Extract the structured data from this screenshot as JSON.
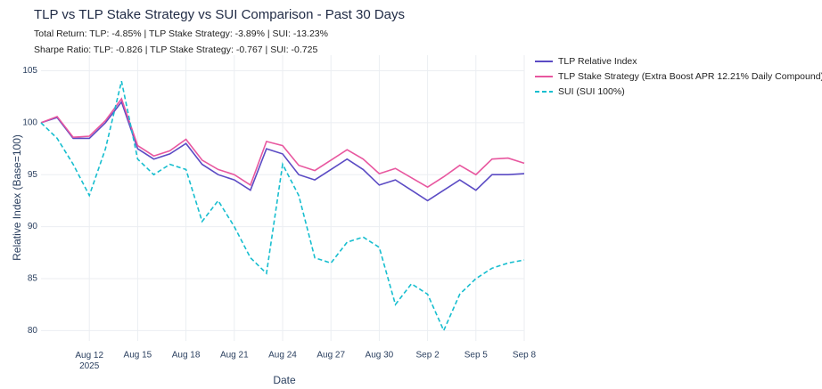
{
  "chart_data": {
    "type": "line",
    "title": "TLP vs TLP Stake Strategy vs SUI Comparison - Past 30 Days",
    "subtitle_lines": [
      "Total Return: TLP: -4.85% | TLP Stake Strategy: -3.89% | SUI: -13.23%",
      "Sharpe Ratio: TLP: -0.826 | TLP Stake Strategy: -0.767 | SUI: -0.725"
    ],
    "x_label": "Date",
    "y_label": "Relative Index (Base=100)",
    "x": [
      "2025-08-09",
      "2025-08-10",
      "2025-08-11",
      "2025-08-12",
      "2025-08-13",
      "2025-08-14",
      "2025-08-15",
      "2025-08-16",
      "2025-08-17",
      "2025-08-18",
      "2025-08-19",
      "2025-08-20",
      "2025-08-21",
      "2025-08-22",
      "2025-08-23",
      "2025-08-24",
      "2025-08-25",
      "2025-08-26",
      "2025-08-27",
      "2025-08-28",
      "2025-08-29",
      "2025-08-30",
      "2025-08-31",
      "2025-09-01",
      "2025-09-02",
      "2025-09-03",
      "2025-09-04",
      "2025-09-05",
      "2025-09-06",
      "2025-09-07",
      "2025-09-08"
    ],
    "series": [
      {
        "name": "TLP Relative Index",
        "color": "#5b4bc4",
        "dash": false,
        "values": [
          100,
          100.5,
          98.5,
          98.5,
          100,
          102,
          97.5,
          96.5,
          97,
          98,
          96,
          95,
          94.5,
          93.5,
          97.5,
          97,
          95,
          94.5,
          95.5,
          96.5,
          95.5,
          94,
          94.5,
          93.5,
          92.5,
          93.5,
          94.5,
          93.5,
          95,
          95,
          95.1
        ]
      },
      {
        "name": "TLP Stake Strategy (Extra Boost APR 12.21% Daily Compound)",
        "color": "#e8579f",
        "dash": false,
        "values": [
          100,
          100.6,
          98.6,
          98.7,
          100.2,
          102.3,
          97.8,
          96.8,
          97.3,
          98.4,
          96.4,
          95.5,
          95,
          94,
          98.2,
          97.8,
          95.9,
          95.4,
          96.4,
          97.4,
          96.5,
          95.1,
          95.6,
          94.7,
          93.8,
          94.8,
          95.9,
          95,
          96.5,
          96.6,
          96.1
        ]
      },
      {
        "name": "SUI (SUI 100%)",
        "color": "#17becf",
        "dash": true,
        "values": [
          100,
          98.5,
          96,
          93,
          97.5,
          104,
          96.5,
          95,
          96,
          95.5,
          90.5,
          92.5,
          90,
          87,
          85.5,
          96,
          93,
          87,
          86.5,
          88.5,
          89,
          88,
          82.5,
          84.5,
          83.5,
          80,
          83.5,
          85,
          86,
          86.5,
          86.8
        ]
      }
    ],
    "xlim": [
      "2025-08-09",
      "2025-09-08"
    ],
    "xticks": [
      {
        "value": "2025-08-12",
        "label": "Aug 12\n2025"
      },
      {
        "value": "2025-08-15",
        "label": "Aug 15"
      },
      {
        "value": "2025-08-18",
        "label": "Aug 18"
      },
      {
        "value": "2025-08-21",
        "label": "Aug 21"
      },
      {
        "value": "2025-08-24",
        "label": "Aug 24"
      },
      {
        "value": "2025-08-27",
        "label": "Aug 27"
      },
      {
        "value": "2025-08-30",
        "label": "Aug 30"
      },
      {
        "value": "2025-09-02",
        "label": "Sep 2"
      },
      {
        "value": "2025-09-05",
        "label": "Sep 5"
      },
      {
        "value": "2025-09-08",
        "label": "Sep 8"
      }
    ],
    "ylim": [
      79,
      106.5
    ],
    "yticks": [
      80,
      85,
      90,
      95,
      100,
      105
    ],
    "grid": true,
    "legend": "top-right"
  }
}
